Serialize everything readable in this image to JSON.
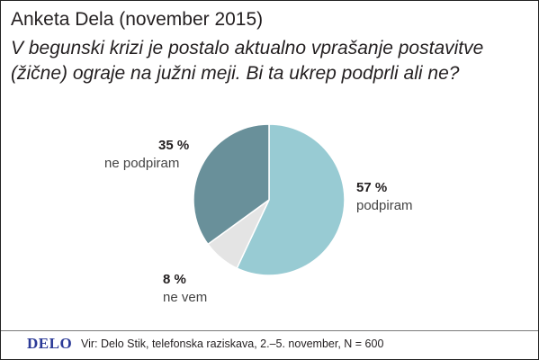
{
  "header": {
    "title": "Anketa Dela (november 2015)",
    "question": "V begunski krizi je postalo aktualno vprašanje postavitve (žične) ograje na južni meji. Bi ta ukrep podprli ali ne?"
  },
  "chart_data": {
    "type": "pie",
    "slices": [
      {
        "label": "podpiram",
        "value": 57,
        "value_label": "57 %",
        "color": "#98cbd3"
      },
      {
        "label": "ne vem",
        "value": 8,
        "value_label": "8 %",
        "color": "#e4e4e4"
      },
      {
        "label": "ne podpiram",
        "value": 35,
        "value_label": "35 %",
        "color": "#69909a"
      }
    ],
    "unit": "%"
  },
  "footer": {
    "logo": "DELO",
    "source": "Vir: Delo Stik, telefonska raziskava, 2.–5. november, N = 600"
  }
}
